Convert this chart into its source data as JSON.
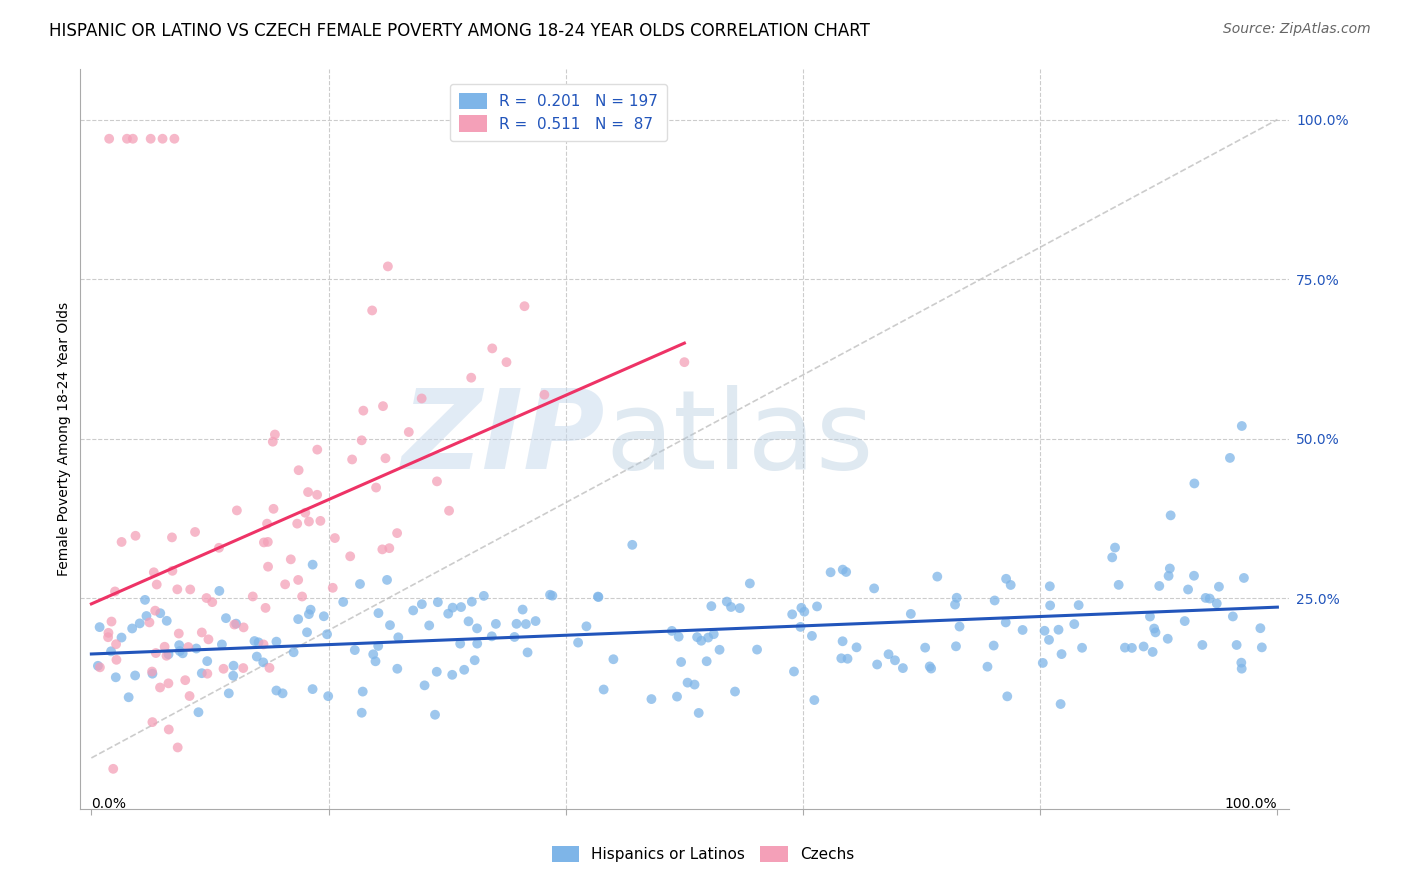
{
  "title": "HISPANIC OR LATINO VS CZECH FEMALE POVERTY AMONG 18-24 YEAR OLDS CORRELATION CHART",
  "source": "Source: ZipAtlas.com",
  "ylabel": "Female Poverty Among 18-24 Year Olds",
  "ytick_labels": [
    "100.0%",
    "75.0%",
    "50.0%",
    "25.0%"
  ],
  "ytick_values": [
    1.0,
    0.75,
    0.5,
    0.25
  ],
  "legend_blue_r": "0.201",
  "legend_blue_n": "197",
  "legend_pink_r": "0.511",
  "legend_pink_n": "87",
  "legend_blue_label": "Hispanics or Latinos",
  "legend_pink_label": "Czechs",
  "blue_color": "#7EB5E8",
  "pink_color": "#F4A0B8",
  "blue_line_color": "#2255BB",
  "pink_line_color": "#EE3366",
  "diag_line_color": "#BBBBBB",
  "title_fontsize": 12,
  "source_fontsize": 10,
  "axis_label_fontsize": 10,
  "tick_fontsize": 10,
  "legend_fontsize": 11,
  "seed": 42,
  "blue_n": 197,
  "pink_n": 87,
  "blue_r": 0.201,
  "pink_r": 0.511,
  "xlim": [
    0.0,
    1.0
  ],
  "ylim": [
    0.0,
    1.0
  ]
}
